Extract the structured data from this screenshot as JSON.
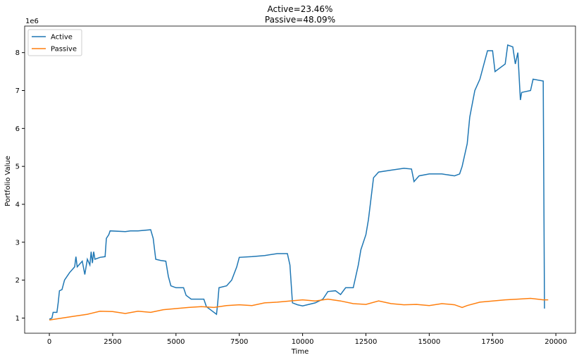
{
  "chart_data": {
    "type": "line",
    "title": [
      "Active=23.46%",
      "Passive=48.09%"
    ],
    "xlabel": "Time",
    "ylabel": "Portfolio Value",
    "y_offset_label": "1e6",
    "xlim": [
      -975,
      20775
    ],
    "ylim": [
      0.6,
      8.7
    ],
    "xticks": [
      0,
      2500,
      5000,
      7500,
      10000,
      12500,
      15000,
      17500,
      20000
    ],
    "yticks": [
      1,
      2,
      3,
      4,
      5,
      6,
      7,
      8
    ],
    "grid": false,
    "legend": "upper left",
    "series": [
      {
        "name": "Active",
        "color": "#1f77b4",
        "x": [
          0,
          100,
          150,
          300,
          350,
          400,
          500,
          600,
          800,
          1000,
          1050,
          1100,
          1300,
          1400,
          1500,
          1600,
          1650,
          1700,
          1750,
          1800,
          2000,
          2200,
          2250,
          2350,
          2400,
          3000,
          3200,
          3500,
          4000,
          4100,
          4200,
          4400,
          4600,
          4700,
          4800,
          5000,
          5300,
          5400,
          5600,
          6000,
          6100,
          6200,
          6400,
          6600,
          6650,
          6700,
          7000,
          7200,
          7400,
          7500,
          8000,
          8500,
          9000,
          9400,
          9500,
          9600,
          9800,
          10000,
          10500,
          10800,
          11000,
          11300,
          11500,
          11700,
          12000,
          12200,
          12300,
          12500,
          12600,
          12800,
          13000,
          13500,
          14000,
          14300,
          14400,
          14600,
          15000,
          15500,
          16000,
          16200,
          16300,
          16500,
          16600,
          16800,
          17000,
          17200,
          17300,
          17500,
          17600,
          18000,
          18100,
          18300,
          18400,
          18500,
          18600,
          18650,
          19000,
          19100,
          19500,
          19550
        ],
        "values": [
          0.97,
          1.0,
          1.15,
          1.15,
          1.4,
          1.72,
          1.75,
          2.0,
          2.2,
          2.35,
          2.62,
          2.35,
          2.5,
          2.15,
          2.55,
          2.4,
          2.75,
          2.45,
          2.75,
          2.55,
          2.6,
          2.62,
          3.1,
          3.2,
          3.3,
          3.28,
          3.3,
          3.3,
          3.33,
          3.1,
          2.55,
          2.52,
          2.5,
          2.1,
          1.85,
          1.8,
          1.8,
          1.6,
          1.5,
          1.5,
          1.5,
          1.3,
          1.2,
          1.1,
          1.4,
          1.8,
          1.85,
          2.0,
          2.35,
          2.6,
          2.62,
          2.65,
          2.7,
          2.7,
          2.4,
          1.4,
          1.35,
          1.32,
          1.4,
          1.5,
          1.7,
          1.72,
          1.62,
          1.8,
          1.8,
          2.4,
          2.8,
          3.2,
          3.6,
          4.7,
          4.85,
          4.9,
          4.95,
          4.93,
          4.6,
          4.75,
          4.8,
          4.8,
          4.75,
          4.8,
          5.0,
          5.6,
          6.3,
          7.0,
          7.3,
          7.8,
          8.05,
          8.05,
          7.5,
          7.7,
          8.2,
          8.15,
          7.7,
          8.0,
          6.75,
          6.95,
          7.0,
          7.3,
          7.25,
          1.25
        ]
      },
      {
        "name": "Passive",
        "color": "#ff7f0e",
        "x": [
          0,
          500,
          1000,
          1500,
          2000,
          2500,
          3000,
          3500,
          4000,
          4500,
          5000,
          5500,
          6000,
          6500,
          7000,
          7500,
          8000,
          8500,
          9000,
          9500,
          10000,
          10500,
          11000,
          11500,
          12000,
          12500,
          13000,
          13500,
          14000,
          14500,
          15000,
          15500,
          16000,
          16300,
          16500,
          17000,
          17500,
          18000,
          18500,
          19000,
          19500,
          19700
        ],
        "values": [
          0.95,
          1.0,
          1.05,
          1.1,
          1.18,
          1.17,
          1.12,
          1.18,
          1.15,
          1.22,
          1.25,
          1.28,
          1.3,
          1.28,
          1.33,
          1.35,
          1.33,
          1.4,
          1.42,
          1.45,
          1.48,
          1.45,
          1.5,
          1.45,
          1.38,
          1.36,
          1.45,
          1.38,
          1.35,
          1.36,
          1.33,
          1.38,
          1.35,
          1.28,
          1.33,
          1.42,
          1.45,
          1.48,
          1.5,
          1.52,
          1.48,
          1.48
        ]
      }
    ]
  }
}
